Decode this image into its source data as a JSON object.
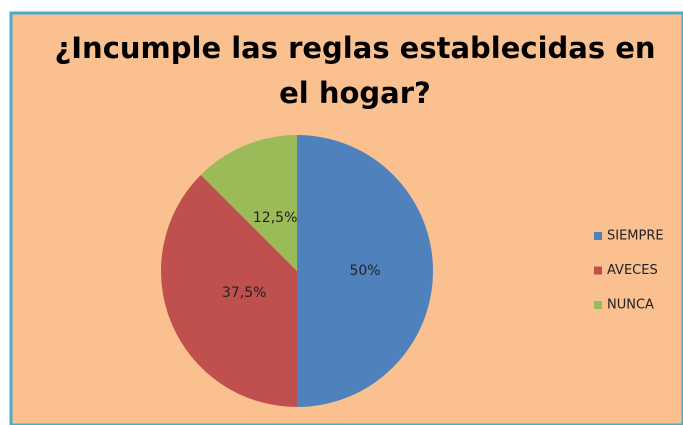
{
  "chart_data": {
    "type": "pie",
    "title": "¿Incumple las reglas establecidas en el hogar?",
    "categories": [
      "SIEMPRE",
      "AVECES",
      "NUNCA"
    ],
    "values": [
      50,
      37.5,
      12.5
    ],
    "value_labels": [
      "50%",
      "37,5%",
      "12,5%"
    ],
    "colors": [
      "#4f81bd",
      "#c0504d",
      "#9bbb59"
    ],
    "legend": "right"
  }
}
